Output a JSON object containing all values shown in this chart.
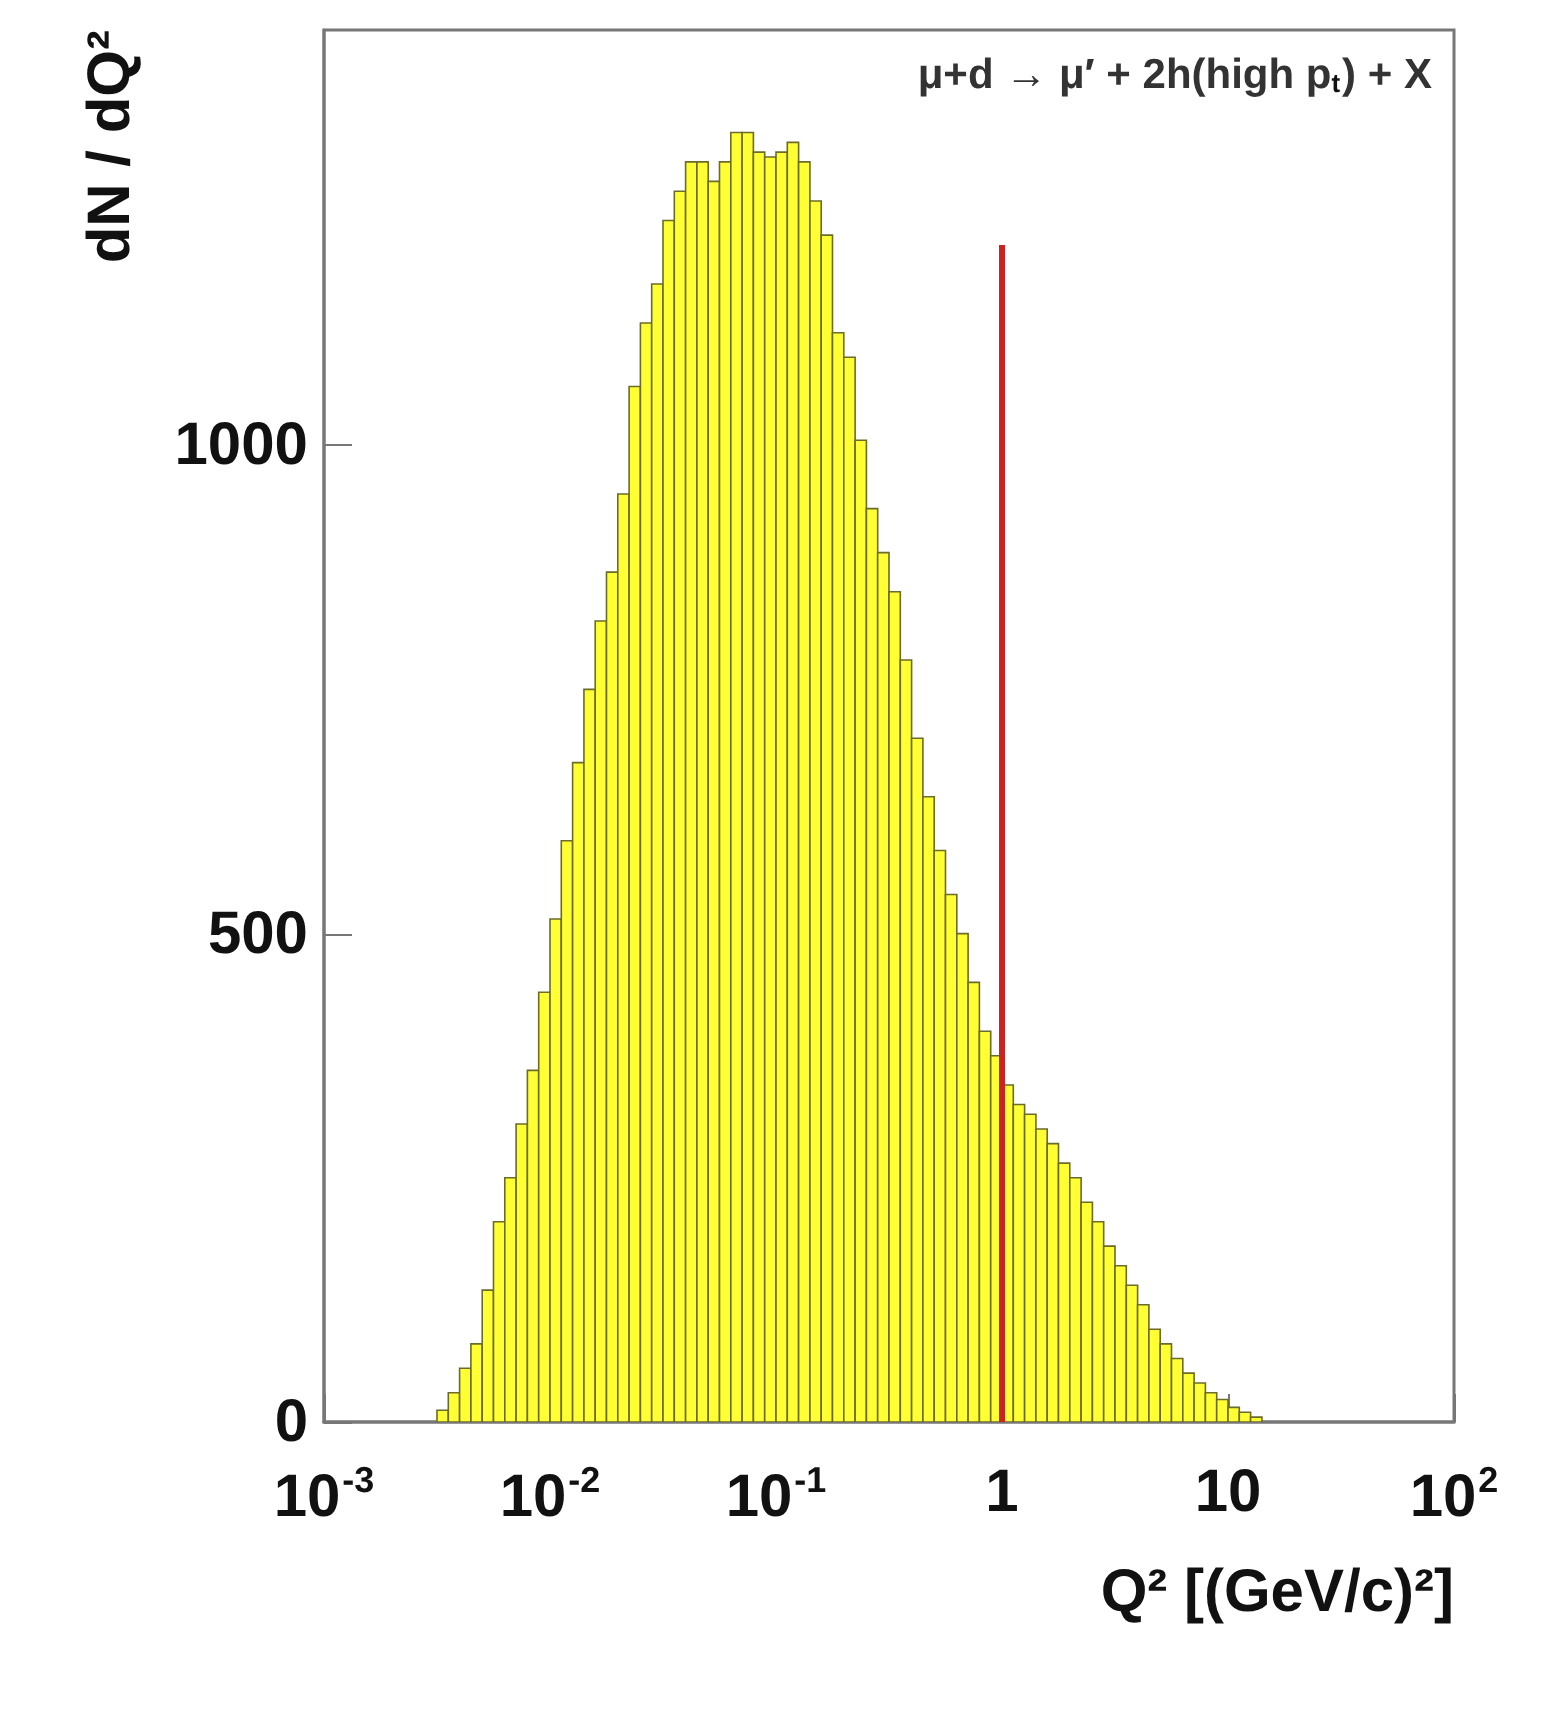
{
  "chart_data": {
    "type": "histogram",
    "xlabel": "Q² [(GeV/c)²]",
    "ylabel": "dN / dQ²",
    "annotations": [
      "μ+d → μ′ + 2h(high p$_{t}$) + X"
    ],
    "log": "x",
    "grid": false,
    "color": "#ffff33",
    "xlim": [
      0.001,
      100
    ],
    "xticks": [
      {
        "value": 0.001,
        "label": "10$^{-3}$"
      },
      {
        "value": 0.01,
        "label": "10$^{-2}$"
      },
      {
        "value": 0.1,
        "label": "10$^{-1}$"
      },
      1,
      10,
      {
        "value": 100,
        "label": "10$^{2}$"
      }
    ],
    "ylim": [
      0,
      1425
    ],
    "yticks": [
      0,
      500,
      1000
    ],
    "bins": [
      0.003162,
      0.003548,
      0.003981,
      0.004467,
      0.005012,
      0.005623,
      0.00631,
      0.007079,
      0.007943,
      0.008913,
      0.01,
      0.01122,
      0.01259,
      0.01413,
      0.01585,
      0.01778,
      0.01995,
      0.02239,
      0.02512,
      0.02818,
      0.03162,
      0.03548,
      0.03981,
      0.04467,
      0.05012,
      0.05623,
      0.0631,
      0.07079,
      0.07943,
      0.08913,
      0.1,
      0.1122,
      0.1259,
      0.1413,
      0.1585,
      0.1778,
      0.1995,
      0.2239,
      0.2512,
      0.2818,
      0.3162,
      0.3548,
      0.3981,
      0.4467,
      0.5012,
      0.5623,
      0.631,
      0.7079,
      0.7943,
      0.8913,
      1,
      1.122,
      1.259,
      1.413,
      1.585,
      1.778,
      1.995,
      2.239,
      2.512,
      2.818,
      3.162,
      3.548,
      3.981,
      4.467,
      5.012,
      5.623,
      6.31,
      7.079,
      7.943,
      8.913,
      10,
      11.22,
      12.59,
      14.13
    ],
    "values": [
      12,
      30,
      55,
      80,
      135,
      205,
      250,
      305,
      360,
      440,
      515,
      595,
      675,
      750,
      820,
      870,
      950,
      1060,
      1125,
      1165,
      1230,
      1260,
      1290,
      1290,
      1270,
      1290,
      1320,
      1320,
      1300,
      1295,
      1300,
      1310,
      1290,
      1250,
      1215,
      1115,
      1090,
      1005,
      935,
      890,
      850,
      780,
      700,
      640,
      585,
      540,
      500,
      450,
      400,
      375,
      345,
      325,
      315,
      300,
      285,
      265,
      250,
      225,
      205,
      180,
      160,
      140,
      120,
      95,
      80,
      65,
      50,
      40,
      30,
      23,
      15,
      10,
      5
    ],
    "series": [
      {
        "type": "line",
        "color": "#cc2222",
        "marker": "none",
        "x": [
          1,
          1
        ],
        "values": [
          0,
          1205
        ]
      }
    ]
  }
}
